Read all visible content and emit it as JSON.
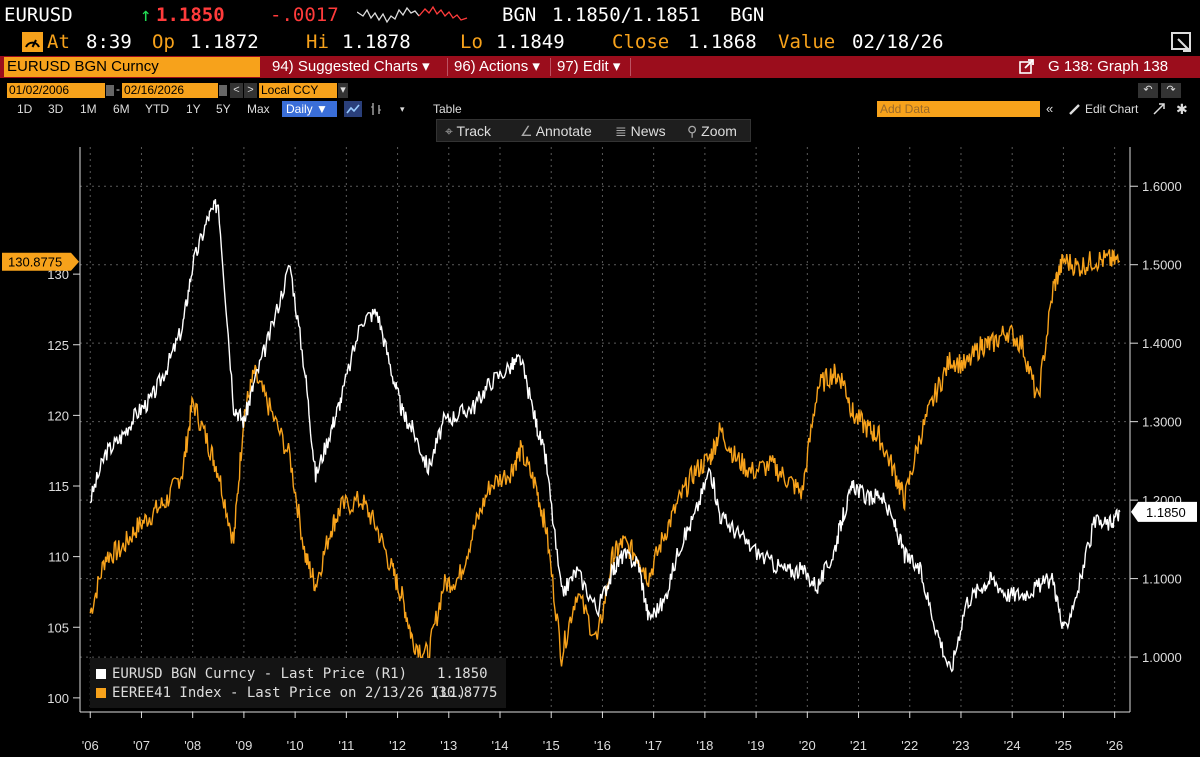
{
  "header": {
    "ticker": "EURUSD",
    "arrow": "↑",
    "last": "1.1850",
    "change": "-.0017",
    "bid_label_left": "BGN",
    "bid_ask": "1.1850/1.1851",
    "bid_label_right": "BGN",
    "at_label": "At",
    "at_time": "8:39",
    "op_label": "Op",
    "op": "1.1872",
    "hi_label": "Hi",
    "hi": "1.1878",
    "lo_label": "Lo",
    "lo": "1.1849",
    "close_label": "Close",
    "close": "1.1868",
    "value_label": "Value",
    "value_date": "02/18/26"
  },
  "menu": {
    "security": "EURUSD BGN Curncy",
    "suggested": "94) Suggested Charts ▾",
    "actions": "96) Actions ▾",
    "edit": "97) Edit ▾",
    "graph_title": "G 138: Graph 138"
  },
  "controls": {
    "start_date": "01/02/2006",
    "end_date": "02/16/2026",
    "currency": "Local CCY",
    "periods": [
      "1D",
      "3D",
      "1M",
      "6M",
      "YTD",
      "1Y",
      "5Y",
      "Max"
    ],
    "frequency": "Daily ▼",
    "table": "Table",
    "add_data_placeholder": "Add Data",
    "edit_chart": "Edit Chart",
    "tools": [
      "Track",
      "Annotate",
      "News",
      "Zoom"
    ]
  },
  "colors": {
    "eurusd": "#ffffff",
    "index": "#f7a21b",
    "menu_bar": "#9b0d1c",
    "accent": "#f7a21b",
    "daily_button": "#3a6ed8"
  },
  "legend": {
    "series1_label": "EURUSD BGN Curncy - Last Price (R1)",
    "series1_value": "1.1850",
    "series2_label": "EEREE41 Index - Last Price on 2/13/26 (L1)",
    "series2_value": "130.8775"
  },
  "chart_data": {
    "type": "line",
    "x_tick_labels": [
      "'06",
      "'07",
      "'08",
      "'09",
      "'10",
      "'11",
      "'12",
      "'13",
      "'14",
      "'15",
      "'16",
      "'17",
      "'18",
      "'19",
      "'20",
      "'21",
      "'22",
      "'23",
      "'24",
      "'25",
      "'26"
    ],
    "left_axis": {
      "ticks": [
        100,
        105,
        110,
        115,
        120,
        125,
        130
      ],
      "range": [
        99,
        139
      ],
      "last_label": "130.8775"
    },
    "right_axis": {
      "ticks": [
        "1.0000",
        "1.1000",
        "1.2000",
        "1.3000",
        "1.4000",
        "1.5000",
        "1.6000"
      ],
      "range": [
        0.93,
        1.65
      ],
      "last_label": "1.1850"
    },
    "grid": true,
    "legend_position": "bottom-left",
    "series": [
      {
        "name": "EURUSD BGN Curncy - Last Price (R1)",
        "axis": "right",
        "x": [
          2006.0,
          2006.3,
          2006.6,
          2006.9,
          2007.2,
          2007.5,
          2007.8,
          2008.0,
          2008.3,
          2008.5,
          2008.8,
          2009.0,
          2009.2,
          2009.5,
          2009.9,
          2010.2,
          2010.4,
          2010.7,
          2010.9,
          2011.3,
          2011.6,
          2011.9,
          2012.1,
          2012.3,
          2012.6,
          2012.9,
          2013.2,
          2013.5,
          2013.8,
          2014.2,
          2014.4,
          2014.7,
          2014.9,
          2015.2,
          2015.5,
          2015.9,
          2016.2,
          2016.4,
          2016.7,
          2016.9,
          2017.2,
          2017.5,
          2017.8,
          2018.1,
          2018.3,
          2018.6,
          2018.9,
          2019.3,
          2019.6,
          2019.9,
          2020.2,
          2020.5,
          2020.7,
          2020.9,
          2021.2,
          2021.4,
          2021.7,
          2021.9,
          2022.2,
          2022.5,
          2022.8,
          2023.1,
          2023.4,
          2023.6,
          2023.9,
          2024.2,
          2024.5,
          2024.8,
          2025.0,
          2025.3,
          2025.6,
          2025.9,
          2026.1
        ],
        "y": [
          1.2,
          1.26,
          1.28,
          1.31,
          1.33,
          1.37,
          1.42,
          1.5,
          1.56,
          1.58,
          1.32,
          1.3,
          1.35,
          1.41,
          1.5,
          1.36,
          1.23,
          1.29,
          1.33,
          1.43,
          1.44,
          1.36,
          1.31,
          1.29,
          1.24,
          1.3,
          1.31,
          1.32,
          1.35,
          1.37,
          1.38,
          1.3,
          1.25,
          1.08,
          1.11,
          1.06,
          1.11,
          1.13,
          1.12,
          1.05,
          1.07,
          1.14,
          1.18,
          1.24,
          1.18,
          1.16,
          1.14,
          1.12,
          1.11,
          1.11,
          1.09,
          1.13,
          1.18,
          1.22,
          1.2,
          1.21,
          1.17,
          1.13,
          1.11,
          1.04,
          0.98,
          1.07,
          1.09,
          1.1,
          1.08,
          1.08,
          1.09,
          1.1,
          1.03,
          1.09,
          1.17,
          1.17,
          1.185
        ]
      },
      {
        "name": "EEREE41 Index - Last Price on 2/13/26 (L1)",
        "axis": "left",
        "x": [
          2006.0,
          2006.3,
          2006.6,
          2006.9,
          2007.2,
          2007.5,
          2007.8,
          2008.0,
          2008.3,
          2008.5,
          2008.8,
          2009.0,
          2009.2,
          2009.5,
          2009.9,
          2010.2,
          2010.4,
          2010.7,
          2010.9,
          2011.3,
          2011.6,
          2011.9,
          2012.1,
          2012.3,
          2012.6,
          2012.9,
          2013.2,
          2013.5,
          2013.8,
          2014.2,
          2014.4,
          2014.7,
          2014.9,
          2015.2,
          2015.5,
          2015.9,
          2016.2,
          2016.4,
          2016.7,
          2016.9,
          2017.2,
          2017.5,
          2017.8,
          2018.1,
          2018.3,
          2018.6,
          2018.9,
          2019.3,
          2019.6,
          2019.9,
          2020.2,
          2020.5,
          2020.7,
          2020.9,
          2021.2,
          2021.4,
          2021.7,
          2021.9,
          2022.2,
          2022.5,
          2022.8,
          2023.1,
          2023.4,
          2023.6,
          2023.9,
          2024.2,
          2024.5,
          2024.8,
          2025.0,
          2025.3,
          2025.6,
          2025.9,
          2026.1
        ],
        "y": [
          106.0,
          110.0,
          110.5,
          112.0,
          113.0,
          114.0,
          116.0,
          121.0,
          118.0,
          116.0,
          111.0,
          120.0,
          123.0,
          120.5,
          117.0,
          110.0,
          108.0,
          112.0,
          113.5,
          114.0,
          112.0,
          109.0,
          107.0,
          104.0,
          103.0,
          108.0,
          108.5,
          112.0,
          115.0,
          116.0,
          117.5,
          115.0,
          112.0,
          103.0,
          107.5,
          104.0,
          110.0,
          111.0,
          110.0,
          108.5,
          111.5,
          114.0,
          116.0,
          117.0,
          119.0,
          117.0,
          116.0,
          116.5,
          115.5,
          114.5,
          122.0,
          123.0,
          122.5,
          120.0,
          119.0,
          118.5,
          116.0,
          114.0,
          118.5,
          121.5,
          124.0,
          123.5,
          125.0,
          125.0,
          126.0,
          125.0,
          121.0,
          129.0,
          131.0,
          130.5,
          131.0,
          131.0,
          130.8775
        ]
      }
    ]
  }
}
